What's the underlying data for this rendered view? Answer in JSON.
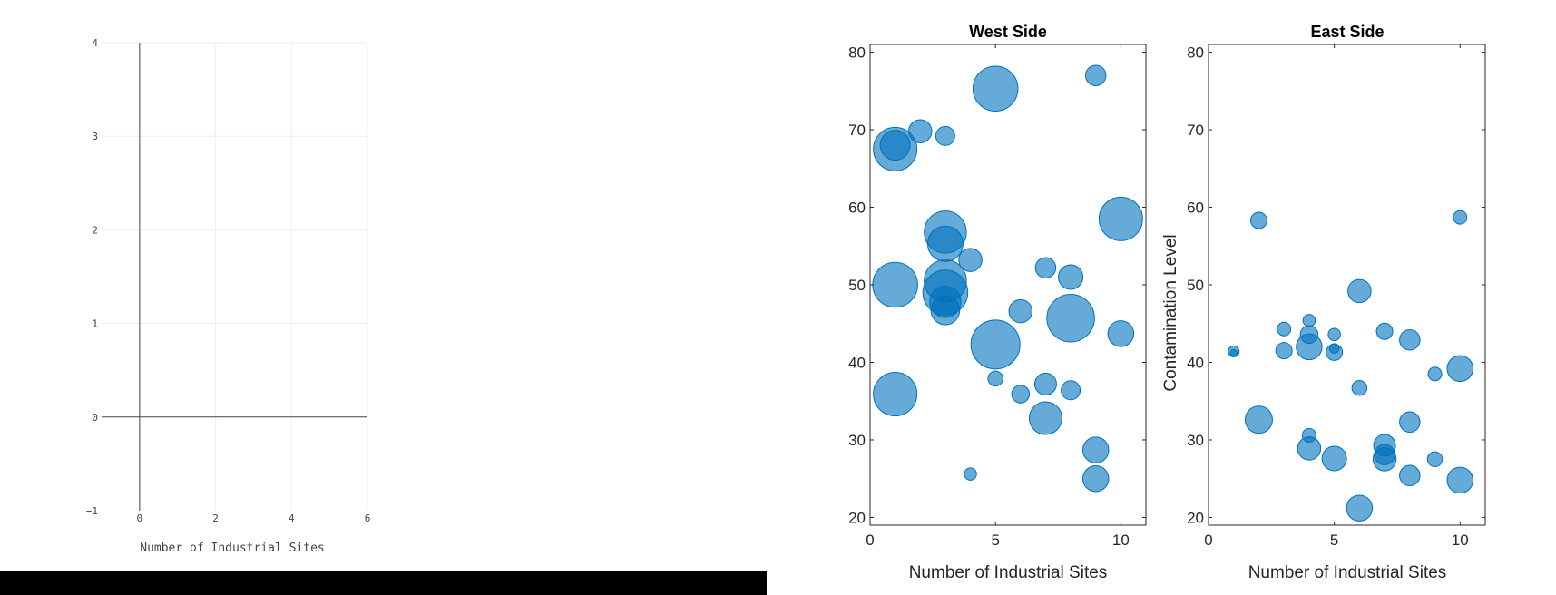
{
  "left_plot": {
    "xlabel": "Number of Industrial Sites",
    "x_ticks": [
      "0",
      "2",
      "4",
      "6"
    ],
    "y_ticks": [
      "−1",
      "0",
      "1",
      "2",
      "3",
      "4"
    ],
    "xlim": [
      -1,
      6
    ],
    "ylim": [
      -1,
      4
    ]
  },
  "chart_data": [
    {
      "type": "scatter",
      "title": "West Side",
      "xlabel": "Number of Industrial Sites",
      "ylabel": "",
      "xlim": [
        0,
        11
      ],
      "ylim": [
        19,
        81
      ],
      "x_ticks": [
        "0",
        "5",
        "10"
      ],
      "y_ticks": [
        "20",
        "30",
        "40",
        "50",
        "60",
        "70",
        "80"
      ],
      "marker_color": "#0072BD",
      "grid": false,
      "points": [
        {
          "x": 1,
          "y": 67.5,
          "size": 3.2
        },
        {
          "x": 1,
          "y": 68.0,
          "size": 2.2
        },
        {
          "x": 2,
          "y": 69.8,
          "size": 1.7
        },
        {
          "x": 3,
          "y": 69.2,
          "size": 1.4
        },
        {
          "x": 5,
          "y": 75.3,
          "size": 3.3
        },
        {
          "x": 9,
          "y": 77.0,
          "size": 1.5
        },
        {
          "x": 10,
          "y": 58.5,
          "size": 3.2
        },
        {
          "x": 3,
          "y": 56.8,
          "size": 3.1
        },
        {
          "x": 3,
          "y": 55.3,
          "size": 2.6
        },
        {
          "x": 4,
          "y": 53.2,
          "size": 1.7
        },
        {
          "x": 1,
          "y": 50.0,
          "size": 3.3
        },
        {
          "x": 3,
          "y": 50.5,
          "size": 3.1
        },
        {
          "x": 3,
          "y": 49.0,
          "size": 3.3
        },
        {
          "x": 3,
          "y": 47.8,
          "size": 2.3
        },
        {
          "x": 3,
          "y": 46.7,
          "size": 2.1
        },
        {
          "x": 7,
          "y": 52.2,
          "size": 1.5
        },
        {
          "x": 8,
          "y": 51.0,
          "size": 1.8
        },
        {
          "x": 6,
          "y": 46.6,
          "size": 1.7
        },
        {
          "x": 8,
          "y": 45.7,
          "size": 3.5
        },
        {
          "x": 10,
          "y": 43.7,
          "size": 1.9
        },
        {
          "x": 5,
          "y": 42.3,
          "size": 3.6
        },
        {
          "x": 5,
          "y": 37.9,
          "size": 1.1
        },
        {
          "x": 1,
          "y": 35.9,
          "size": 3.2
        },
        {
          "x": 6,
          "y": 35.9,
          "size": 1.3
        },
        {
          "x": 7,
          "y": 37.2,
          "size": 1.6
        },
        {
          "x": 8,
          "y": 36.4,
          "size": 1.4
        },
        {
          "x": 7,
          "y": 32.8,
          "size": 2.4
        },
        {
          "x": 9,
          "y": 28.7,
          "size": 1.9
        },
        {
          "x": 9,
          "y": 25.0,
          "size": 1.9
        },
        {
          "x": 4,
          "y": 25.6,
          "size": 0.9
        }
      ]
    },
    {
      "type": "scatter",
      "title": "East Side",
      "xlabel": "Number of Industrial Sites",
      "ylabel": "Contamination Level",
      "xlim": [
        0,
        11
      ],
      "ylim": [
        19,
        81
      ],
      "x_ticks": [
        "0",
        "5",
        "10"
      ],
      "y_ticks": [
        "20",
        "30",
        "40",
        "50",
        "60",
        "70",
        "80"
      ],
      "marker_color": "#0072BD",
      "grid": false,
      "points": [
        {
          "x": 1,
          "y": 41.4,
          "size": 0.8
        },
        {
          "x": 1,
          "y": 41.2,
          "size": 0.5
        },
        {
          "x": 2,
          "y": 58.3,
          "size": 1.2
        },
        {
          "x": 2,
          "y": 32.6,
          "size": 2.0
        },
        {
          "x": 3,
          "y": 44.3,
          "size": 1.0
        },
        {
          "x": 3,
          "y": 41.5,
          "size": 1.2
        },
        {
          "x": 4,
          "y": 45.4,
          "size": 0.9
        },
        {
          "x": 4,
          "y": 43.6,
          "size": 1.3
        },
        {
          "x": 4,
          "y": 42.0,
          "size": 1.9
        },
        {
          "x": 4,
          "y": 30.6,
          "size": 1.0
        },
        {
          "x": 4,
          "y": 28.9,
          "size": 1.7
        },
        {
          "x": 5,
          "y": 43.6,
          "size": 0.9
        },
        {
          "x": 5,
          "y": 41.8,
          "size": 0.7
        },
        {
          "x": 5,
          "y": 41.3,
          "size": 1.2
        },
        {
          "x": 5,
          "y": 27.6,
          "size": 1.8
        },
        {
          "x": 6,
          "y": 49.2,
          "size": 1.7
        },
        {
          "x": 6,
          "y": 36.7,
          "size": 1.1
        },
        {
          "x": 6,
          "y": 21.2,
          "size": 1.9
        },
        {
          "x": 7,
          "y": 44.0,
          "size": 1.2
        },
        {
          "x": 7,
          "y": 29.3,
          "size": 1.6
        },
        {
          "x": 7,
          "y": 28.1,
          "size": 1.5
        },
        {
          "x": 7,
          "y": 27.5,
          "size": 1.7
        },
        {
          "x": 8,
          "y": 42.9,
          "size": 1.5
        },
        {
          "x": 8,
          "y": 32.3,
          "size": 1.5
        },
        {
          "x": 8,
          "y": 25.4,
          "size": 1.5
        },
        {
          "x": 9,
          "y": 38.5,
          "size": 1.0
        },
        {
          "x": 9,
          "y": 27.5,
          "size": 1.1
        },
        {
          "x": 10,
          "y": 58.7,
          "size": 1.0
        },
        {
          "x": 10,
          "y": 39.2,
          "size": 1.9
        },
        {
          "x": 10,
          "y": 24.8,
          "size": 1.9
        }
      ]
    }
  ]
}
